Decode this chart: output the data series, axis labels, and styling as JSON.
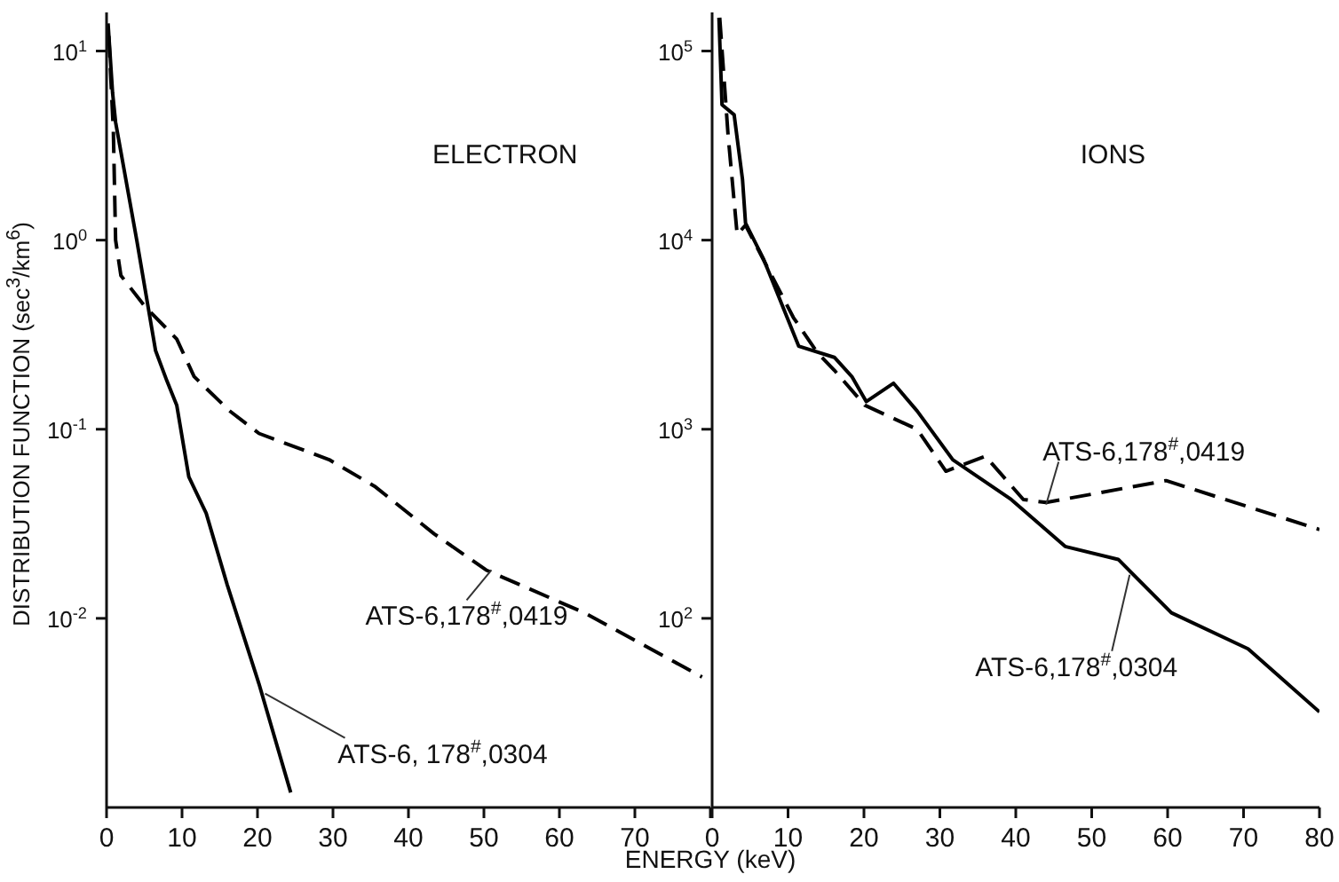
{
  "chart_data": [
    {
      "type": "line",
      "title": "ELECTRON",
      "xlabel": "ENERGY (keV)",
      "ylabel": "DISTRIBUTION FUNCTION (sec$^{3}$/km$^{6}$)",
      "log": "y",
      "marker": "none",
      "xlim": [
        0,
        80
      ],
      "xticks": [
        0,
        10,
        20,
        30,
        40,
        50,
        60,
        70,
        {
          "value": 80,
          "label": null
        }
      ],
      "ylim": [
        0.001,
        16
      ],
      "yticks": [
        {
          "value": 10,
          "label": "10$^{1}$"
        },
        {
          "value": 1,
          "label": "10$^{0}$"
        },
        {
          "value": 0.1,
          "label": "10$^{-1}$"
        },
        {
          "value": 0.01,
          "label": "10$^{-2}$"
        }
      ],
      "series": [
        {
          "color": "#000000",
          "line_style": "solid",
          "x": [
            0.2,
            0.8,
            1.2,
            4,
            6.5,
            8,
            9.3,
            10.9,
            13.2,
            16,
            20.2,
            24.4
          ],
          "values": [
            14,
            6,
            4.2,
            1,
            0.26,
            0.18,
            0.134,
            0.056,
            0.036,
            0.015,
            0.0045,
            0.0012
          ]
        },
        {
          "color": "#000000",
          "line_style": "dashed",
          "x": [
            0.3,
            0.9,
            1.2,
            1.9,
            5,
            9.3,
            11.6,
            16.2,
            20.2,
            29.5,
            35.5,
            43.4,
            50.3,
            63.3,
            78.9
          ],
          "values": [
            12,
            3.8,
            1,
            0.65,
            0.45,
            0.3,
            0.19,
            0.126,
            0.095,
            0.069,
            0.05,
            0.028,
            0.018,
            0.0107,
            0.0049
          ]
        }
      ],
      "annotations": [
        {
          "text": "ATS-6,178$^{#}$,0419",
          "x": 51,
          "y": 0.018
        },
        {
          "text": "ATS-6, 178$^{#}$,0304",
          "x": 21,
          "y": 0.004
        }
      ]
    },
    {
      "type": "line",
      "title": "IONS",
      "log": "y",
      "marker": "none",
      "xlim": [
        0,
        80
      ],
      "xticks": [
        0,
        10,
        20,
        30,
        40,
        50,
        60,
        70,
        80
      ],
      "ylim": [
        10,
        160000
      ],
      "yticks": [
        {
          "value": 100000,
          "label": "10$^{5}$"
        },
        {
          "value": 10000,
          "label": "10$^{4}$"
        },
        {
          "value": 1000,
          "label": "10$^{3}$"
        },
        {
          "value": 100,
          "label": "10$^{2}$"
        }
      ],
      "series": [
        {
          "color": "#000000",
          "line_style": "solid",
          "x": [
            0.9,
            1.3,
            2.9,
            4,
            4.4,
            6.8,
            11.4,
            16.1,
            18.4,
            20.3,
            23.9,
            27,
            31.7,
            39.4,
            46.5,
            53.5,
            60.5,
            70.6,
            80
          ],
          "values": [
            150000,
            52000,
            46000,
            21000,
            12300,
            7900,
            2750,
            2400,
            1900,
            1400,
            1750,
            1250,
            690,
            425,
            240,
            205,
            107,
            69,
            32
          ]
        },
        {
          "color": "#000000",
          "line_style": "dashed",
          "x": [
            1,
            2.1,
            3.3,
            4.4,
            10.7,
            13.8,
            16.1,
            20.1,
            27,
            30.8,
            36,
            41,
            44,
            59.8,
            80
          ],
          "values": [
            150000,
            36000,
            10700,
            12000,
            3900,
            2560,
            2050,
            1340,
            1000,
            600,
            720,
            425,
            410,
            535,
            295
          ]
        }
      ],
      "annotations": [
        {
          "text": "ATS-6,178$^{#}$,0419",
          "x": 44,
          "y": 400
        },
        {
          "text": "ATS-6,178$^{#}$,0304",
          "x": 55,
          "y": 170
        }
      ]
    }
  ]
}
